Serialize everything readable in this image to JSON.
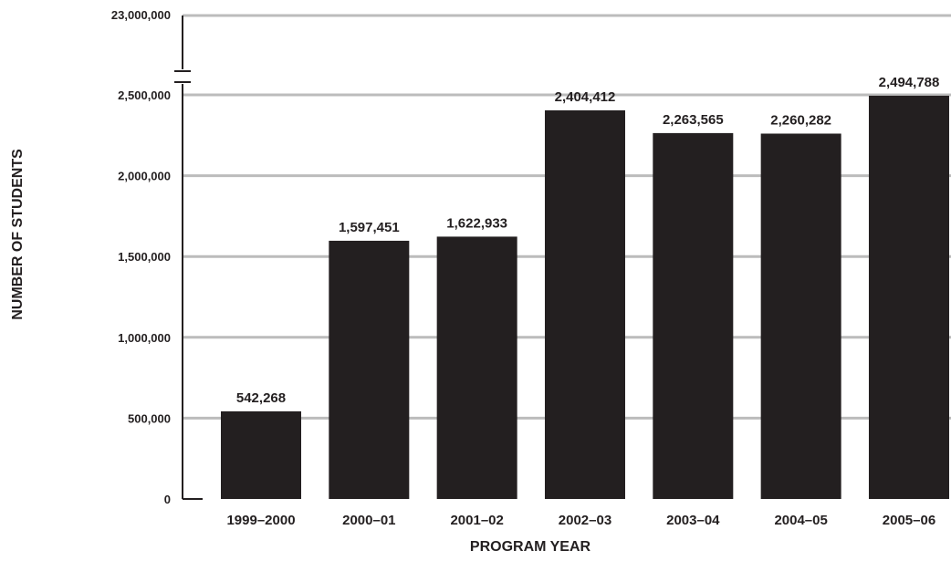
{
  "chart_data": {
    "type": "bar",
    "categories": [
      "1999–2000",
      "2000–01",
      "2001–02",
      "2002–03",
      "2003–04",
      "2004–05",
      "2005–06"
    ],
    "values": [
      542268,
      1597451,
      1622933,
      2404412,
      2263565,
      2260282,
      2494788
    ],
    "value_labels": [
      "542,268",
      "1,597,451",
      "1,622,933",
      "2,404,412",
      "2,263,565",
      "2,260,282",
      "2,494,788"
    ],
    "xlabel": "PROGRAM YEAR",
    "ylabel": "NUMBER OF STUDENTS",
    "ylim": [
      0,
      2500000
    ],
    "yticks": [
      0,
      500000,
      1000000,
      1500000,
      2000000,
      2500000
    ],
    "ytick_labels": [
      "0",
      "500,000",
      "1,000,000",
      "1,500,000",
      "2,000,000",
      "2,500,000"
    ],
    "axis_break_top_label": "23,000,000",
    "axis_break_top_value": 23000000,
    "grid": true,
    "colors": {
      "bar": "#231f20",
      "grid": "#bcbcbc",
      "text": "#231f20"
    }
  }
}
